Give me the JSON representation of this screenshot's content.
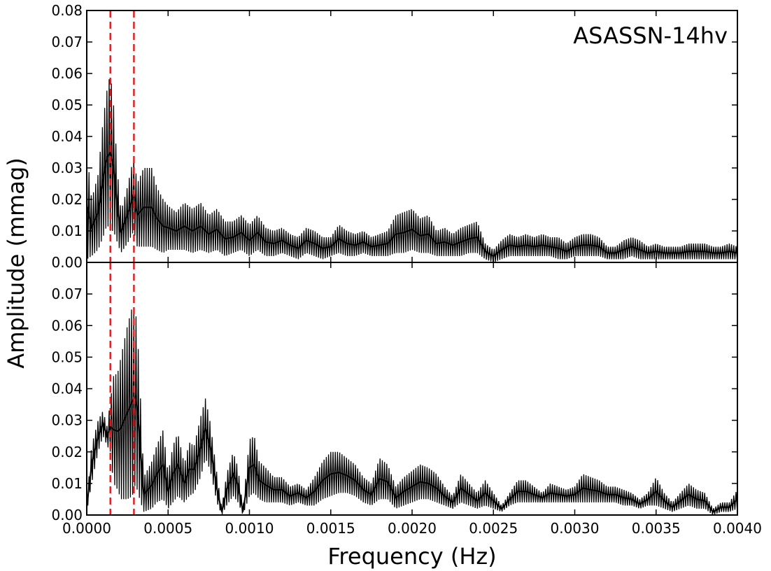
{
  "chart_data": {
    "type": "line",
    "xlabel": "Frequency (Hz)",
    "ylabel": "Amplitude (mmag)",
    "xlim": [
      0,
      0.004
    ],
    "ylim": [
      0,
      0.08
    ],
    "x_ticks": [
      "0.0000",
      "0.0005",
      "0.0010",
      "0.0015",
      "0.0020",
      "0.0025",
      "0.0030",
      "0.0035",
      "0.0040"
    ],
    "y_ticks_top": [
      "0.00",
      "0.01",
      "0.02",
      "0.03",
      "0.04",
      "0.05",
      "0.06",
      "0.07",
      "0.08"
    ],
    "y_ticks_bottom": [
      "0.00",
      "0.01",
      "0.02",
      "0.03",
      "0.04",
      "0.05",
      "0.06",
      "0.07"
    ],
    "reference_lines_x": [
      0.000145,
      0.00029
    ],
    "reference_line_color": "#e8161b",
    "line_color": "#000000",
    "grid": false,
    "annotation": "ASASSN-14hv",
    "panels": [
      {
        "name": "top",
        "envelope_x": [
          0,
          3e-05,
          7e-05,
          0.0001,
          0.000125,
          0.000145,
          0.000165,
          0.00019,
          0.00021,
          0.00025,
          0.00029,
          0.00031,
          0.00035,
          0.0004,
          0.00043,
          0.00047,
          0.0005,
          0.00055,
          0.0006,
          0.00065,
          0.0007,
          0.00075,
          0.0008,
          0.00085,
          0.0009,
          0.00095,
          0.001,
          0.00105,
          0.0011,
          0.00115,
          0.0012,
          0.00125,
          0.0013,
          0.00135,
          0.0014,
          0.00145,
          0.0015,
          0.00155,
          0.0016,
          0.00165,
          0.0017,
          0.00175,
          0.0018,
          0.00185,
          0.0019,
          0.00195,
          0.002,
          0.00205,
          0.0021,
          0.00215,
          0.0022,
          0.00225,
          0.0023,
          0.00235,
          0.0024,
          0.00245,
          0.0025,
          0.00255,
          0.0026,
          0.00265,
          0.0027,
          0.00275,
          0.0028,
          0.00285,
          0.0029,
          0.00295,
          0.003,
          0.00305,
          0.0031,
          0.00315,
          0.0032,
          0.00325,
          0.0033,
          0.00335,
          0.0034,
          0.00345,
          0.0035,
          0.00355,
          0.0036,
          0.00365,
          0.0037,
          0.00375,
          0.0038,
          0.00385,
          0.0039,
          0.00395,
          0.004
        ],
        "envelope_max": [
          0.036,
          0.02,
          0.028,
          0.045,
          0.055,
          0.06,
          0.05,
          0.028,
          0.016,
          0.024,
          0.034,
          0.025,
          0.03,
          0.03,
          0.024,
          0.02,
          0.018,
          0.016,
          0.019,
          0.017,
          0.019,
          0.015,
          0.017,
          0.013,
          0.013,
          0.015,
          0.012,
          0.015,
          0.011,
          0.01,
          0.011,
          0.009,
          0.008,
          0.011,
          0.01,
          0.008,
          0.008,
          0.012,
          0.01,
          0.009,
          0.01,
          0.008,
          0.009,
          0.01,
          0.015,
          0.016,
          0.017,
          0.014,
          0.015,
          0.01,
          0.011,
          0.009,
          0.011,
          0.012,
          0.013,
          0.006,
          0.004,
          0.007,
          0.009,
          0.008,
          0.009,
          0.008,
          0.009,
          0.008,
          0.008,
          0.006,
          0.008,
          0.009,
          0.009,
          0.008,
          0.005,
          0.005,
          0.007,
          0.008,
          0.007,
          0.005,
          0.006,
          0.005,
          0.005,
          0.005,
          0.006,
          0.006,
          0.006,
          0.005,
          0.005,
          0.006,
          0.005
        ],
        "envelope_min": [
          0.001,
          0.002,
          0.004,
          0.008,
          0.012,
          0.01,
          0.01,
          0.006,
          0.003,
          0.006,
          0.01,
          0.005,
          0.005,
          0.005,
          0.004,
          0.003,
          0.004,
          0.004,
          0.004,
          0.003,
          0.004,
          0.003,
          0.004,
          0.002,
          0.003,
          0.004,
          0.002,
          0.004,
          0.002,
          0.002,
          0.003,
          0.002,
          0.001,
          0.003,
          0.002,
          0.001,
          0.002,
          0.003,
          0.002,
          0.002,
          0.003,
          0.002,
          0.002,
          0.002,
          0.003,
          0.003,
          0.004,
          0.003,
          0.003,
          0.002,
          0.002,
          0.002,
          0.002,
          0.003,
          0.003,
          0.001,
          0.0,
          0.001,
          0.002,
          0.002,
          0.002,
          0.002,
          0.002,
          0.002,
          0.001,
          0.001,
          0.002,
          0.002,
          0.002,
          0.002,
          0.001,
          0.001,
          0.001,
          0.002,
          0.001,
          0.001,
          0.001,
          0.001,
          0.001,
          0.001,
          0.001,
          0.001,
          0.001,
          0.001,
          0.001,
          0.001,
          0.001
        ]
      },
      {
        "name": "bottom",
        "envelope_x": [
          0,
          3e-05,
          7e-05,
          0.0001,
          0.000125,
          0.000145,
          0.000165,
          0.00019,
          0.00021,
          0.00025,
          0.00028,
          0.0003,
          0.00032,
          0.00035,
          0.0004,
          0.00043,
          0.00047,
          0.0005,
          0.00053,
          0.00056,
          0.0006,
          0.00063,
          0.00066,
          0.0007,
          0.00073,
          0.00076,
          0.0008,
          0.00083,
          0.00086,
          0.0009,
          0.00093,
          0.00096,
          0.001,
          0.00103,
          0.00106,
          0.0011,
          0.00115,
          0.0012,
          0.00125,
          0.0013,
          0.00135,
          0.0014,
          0.00145,
          0.0015,
          0.00155,
          0.0016,
          0.00165,
          0.0017,
          0.00175,
          0.0018,
          0.00185,
          0.0019,
          0.00195,
          0.002,
          0.00205,
          0.0021,
          0.00215,
          0.0022,
          0.00225,
          0.0023,
          0.00235,
          0.0024,
          0.00245,
          0.0025,
          0.00255,
          0.0026,
          0.00265,
          0.0027,
          0.00275,
          0.0028,
          0.00285,
          0.0029,
          0.00295,
          0.003,
          0.00305,
          0.0031,
          0.00315,
          0.0032,
          0.00325,
          0.0033,
          0.00335,
          0.0034,
          0.00345,
          0.0035,
          0.00355,
          0.0036,
          0.00365,
          0.0037,
          0.00375,
          0.0038,
          0.00385,
          0.0039,
          0.00395,
          0.004
        ],
        "envelope_max": [
          0.004,
          0.022,
          0.03,
          0.033,
          0.028,
          0.036,
          0.044,
          0.045,
          0.05,
          0.06,
          0.066,
          0.065,
          0.05,
          0.012,
          0.017,
          0.022,
          0.027,
          0.013,
          0.022,
          0.026,
          0.016,
          0.023,
          0.022,
          0.031,
          0.037,
          0.029,
          0.013,
          0.002,
          0.013,
          0.02,
          0.015,
          0.002,
          0.024,
          0.025,
          0.017,
          0.015,
          0.012,
          0.012,
          0.009,
          0.01,
          0.008,
          0.012,
          0.017,
          0.02,
          0.02,
          0.018,
          0.016,
          0.012,
          0.01,
          0.018,
          0.016,
          0.009,
          0.012,
          0.014,
          0.016,
          0.015,
          0.013,
          0.009,
          0.006,
          0.013,
          0.01,
          0.007,
          0.011,
          0.007,
          0.003,
          0.007,
          0.011,
          0.011,
          0.009,
          0.007,
          0.01,
          0.009,
          0.008,
          0.009,
          0.013,
          0.012,
          0.011,
          0.009,
          0.009,
          0.008,
          0.007,
          0.005,
          0.007,
          0.012,
          0.007,
          0.004,
          0.007,
          0.01,
          0.008,
          0.007,
          0.002,
          0.004,
          0.004,
          0.008
        ],
        "envelope_min": [
          0.001,
          0.01,
          0.02,
          0.025,
          0.022,
          0.02,
          0.01,
          0.008,
          0.005,
          0.005,
          0.006,
          0.01,
          0.006,
          0.001,
          0.002,
          0.004,
          0.005,
          0.002,
          0.004,
          0.006,
          0.004,
          0.006,
          0.007,
          0.012,
          0.018,
          0.014,
          0.004,
          0.0,
          0.003,
          0.006,
          0.004,
          0.0,
          0.006,
          0.007,
          0.005,
          0.004,
          0.004,
          0.004,
          0.003,
          0.004,
          0.003,
          0.003,
          0.005,
          0.006,
          0.007,
          0.007,
          0.006,
          0.004,
          0.003,
          0.005,
          0.005,
          0.002,
          0.003,
          0.004,
          0.005,
          0.005,
          0.004,
          0.003,
          0.002,
          0.004,
          0.003,
          0.002,
          0.003,
          0.002,
          0.001,
          0.003,
          0.004,
          0.004,
          0.004,
          0.004,
          0.004,
          0.004,
          0.004,
          0.004,
          0.004,
          0.004,
          0.004,
          0.004,
          0.004,
          0.003,
          0.003,
          0.002,
          0.003,
          0.003,
          0.002,
          0.001,
          0.002,
          0.003,
          0.002,
          0.002,
          0.0,
          0.001,
          0.001,
          0.002
        ]
      }
    ]
  }
}
